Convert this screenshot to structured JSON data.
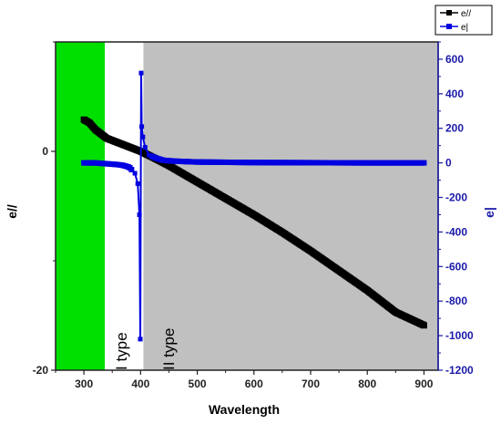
{
  "chart_data": {
    "type": "line",
    "xlabel": "Wavelength",
    "ylabel_left": "e//",
    "ylabel_right": "e|",
    "xlim": [
      250,
      925
    ],
    "ylim_left": [
      -20,
      10
    ],
    "ylim_right": [
      -1200,
      700
    ],
    "x_ticks": [
      "300",
      "400",
      "500",
      "600",
      "700",
      "800",
      "900"
    ],
    "y_left_ticks": [
      "0",
      "-20"
    ],
    "y_right_ticks": [
      "600",
      "400",
      "200",
      "0",
      "-200",
      "-400",
      "-600",
      "-800",
      "-1000",
      "-1200"
    ],
    "region_labels": [
      "I  type",
      "II  type"
    ],
    "regions": [
      {
        "x": [
          250,
          337
        ],
        "color": "#00e000"
      },
      {
        "x": [
          337,
          405
        ],
        "color": "#ffffff"
      },
      {
        "x": [
          405,
          925
        ],
        "color": "#c0c0c0"
      }
    ],
    "legend": {
      "placement": "top-right",
      "entries": [
        "e//",
        "e|"
      ]
    },
    "colors": {
      "e_parallel": "#000000",
      "e_perp": "#0000e0",
      "right_axis": "#1a1aa8"
    },
    "series": [
      {
        "name": "e//",
        "axis": "left",
        "x": [
          300,
          310,
          320,
          330,
          340,
          360,
          380,
          400,
          420,
          450,
          500,
          550,
          600,
          650,
          700,
          750,
          800,
          850,
          900
        ],
        "values": [
          2.9,
          2.6,
          2.0,
          1.6,
          1.2,
          0.8,
          0.4,
          0.0,
          -0.5,
          -1.3,
          -2.8,
          -4.3,
          -5.8,
          -7.4,
          -9.1,
          -10.9,
          -12.7,
          -14.7,
          -15.9
        ]
      },
      {
        "name": "e|",
        "axis": "right",
        "x": [
          300,
          320,
          340,
          360,
          370,
          380,
          390,
          395,
          398,
          399.5,
          401,
          402,
          404,
          408,
          415,
          425,
          440,
          460,
          500,
          600,
          700,
          800,
          900
        ],
        "values": [
          0,
          0,
          -5,
          -10,
          -15,
          -25,
          -60,
          -120,
          -300,
          -1020,
          520,
          210,
          150,
          90,
          45,
          30,
          15,
          10,
          5,
          2,
          1,
          0,
          0
        ]
      }
    ]
  }
}
